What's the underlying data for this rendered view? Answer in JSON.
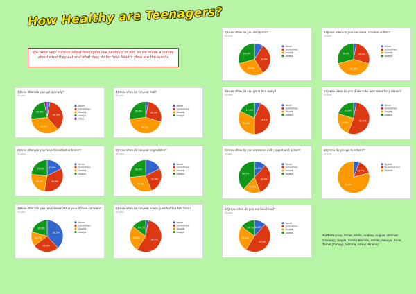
{
  "title": "How Healthy are Teenagers?",
  "intro": "We were very curious about teenagers live healthily or not, so we made a survey about what they eat and what they do for their health. Here are the results",
  "author_label": "Authors:",
  "author_names": "Asa, Oscar, Marie, Andrea, August, Hannah (Norway), Şeyda, Sonen-Blumen, Simon, Akkaya, Sude, Temel (Turkey), Victoria, Alina (Ukraine)",
  "colors": {
    "blue": "#3366cc",
    "red": "#dc3912",
    "orange": "#ff9900",
    "green": "#109618",
    "purple": "#990099"
  },
  "chart_data": [
    {
      "id": "c1",
      "type": "pie",
      "title": "1)How often do you get up early?",
      "subtitle": "34 yanıt",
      "legend": [
        "Never",
        "Sometimes",
        "Usually",
        "Always",
        "Often"
      ],
      "values": [
        2.9,
        35.3,
        35.3,
        23.5,
        2.9
      ],
      "colors": [
        "blue",
        "red",
        "orange",
        "green",
        "purple"
      ],
      "labels": [
        "",
        "35.3%",
        "35.3%",
        "23.5%",
        ""
      ]
    },
    {
      "id": "c2",
      "type": "pie",
      "title": "4)How often do you eat fruit?",
      "subtitle": "34 yanıt",
      "legend": [
        "Never",
        "Sometimes",
        "Usually",
        "Always"
      ],
      "values": [
        2.9,
        26.5,
        44.1,
        26.5
      ],
      "colors": [
        "blue",
        "red",
        "orange",
        "green"
      ],
      "labels": [
        "",
        "26.5%",
        "44.1%",
        "26.5%"
      ]
    },
    {
      "id": "c3",
      "type": "pie",
      "title": "2)How often do you have breakfast at home?",
      "subtitle": "34 yanıt",
      "legend": [
        "Never",
        "Sometimes",
        "Usually",
        "Always"
      ],
      "values": [
        17.6,
        35.3,
        23.5,
        23.5
      ],
      "colors": [
        "blue",
        "red",
        "orange",
        "green"
      ],
      "labels": [
        "17.6%",
        "35.3%",
        "23.5%",
        "23.5%"
      ]
    },
    {
      "id": "c4",
      "type": "pie",
      "title": "5)How often do you eat vegetables?",
      "subtitle": "34 yanıt",
      "legend": [
        "Never",
        "Sometimes",
        "Usually",
        "Always"
      ],
      "values": [
        17.6,
        26.5,
        29.4,
        26.5
      ],
      "colors": [
        "blue",
        "red",
        "orange",
        "green"
      ],
      "labels": [
        "",
        "26.5%",
        "29.4%",
        "26.5%"
      ]
    },
    {
      "id": "c5",
      "type": "pie",
      "title": "3)How often do you have breakfast at your school canteen?",
      "subtitle": "34 yanıt",
      "legend": [
        "Never",
        "Sometimes",
        "Usually",
        "Always"
      ],
      "values": [
        38.2,
        26.5,
        14.7,
        20.6
      ],
      "colors": [
        "blue",
        "red",
        "orange",
        "green"
      ],
      "labels": [
        "38.2%",
        "26.5%",
        "14.7%",
        "20.6%"
      ]
    },
    {
      "id": "c6",
      "type": "pie",
      "title": "6)How often do you eat snack, junk food or fast food?",
      "subtitle": "34 yanıt",
      "legend": [
        "Never",
        "Sometimes",
        "Usually",
        "Always"
      ],
      "values": [
        2.9,
        55.9,
        26.5,
        14.7
      ],
      "colors": [
        "blue",
        "red",
        "orange",
        "green"
      ],
      "labels": [
        "",
        "55.9%",
        "26.5%",
        "14.7%"
      ]
    },
    {
      "id": "c7",
      "type": "pie",
      "title": "7)How often do you do sports?",
      "subtitle": "34 yanıt",
      "legend": [
        "Never",
        "Sometimes",
        "Usually",
        "Always"
      ],
      "values": [
        8.8,
        32.4,
        29.4,
        29.4
      ],
      "colors": [
        "blue",
        "red",
        "orange",
        "green"
      ],
      "labels": [
        "",
        "32.4%",
        "29.4%",
        "29.4%"
      ]
    },
    {
      "id": "c8",
      "type": "pie",
      "title": "11)How often do you eat meat, chicken or fish?",
      "subtitle": "34 yanıt",
      "legend": [
        "Never",
        "Sometimes",
        "Usually",
        "Always"
      ],
      "values": [
        2.9,
        26.5,
        41.2,
        29.4
      ],
      "colors": [
        "blue",
        "red",
        "orange",
        "green"
      ],
      "labels": [
        "",
        "26.5%",
        "41.2%",
        "29.4%"
      ]
    },
    {
      "id": "c9",
      "type": "pie",
      "title": "8)How often do you go to bed early?",
      "subtitle": "34 yanıt",
      "legend": [
        "Never",
        "Sometimes",
        "Usually",
        "Always"
      ],
      "values": [
        5.9,
        44.1,
        32.4,
        17.6
      ],
      "colors": [
        "blue",
        "red",
        "orange",
        "green"
      ],
      "labels": [
        "",
        "44.1%",
        "32.4%",
        "17.6%"
      ]
    },
    {
      "id": "c10",
      "type": "pie",
      "title": "12)How often do you drink coke and other fizzy drinks?",
      "subtitle": "34 yanıt",
      "legend": [
        "Never",
        "Sometimes",
        "Usually",
        "Always"
      ],
      "values": [
        2.9,
        52.9,
        23.5,
        20.6
      ],
      "colors": [
        "blue",
        "red",
        "orange",
        "green"
      ],
      "labels": [
        "",
        "52.9%",
        "23.5%",
        "20.6%"
      ]
    },
    {
      "id": "c11",
      "type": "pie",
      "title": "9)How often do you consume milk, yogurt and ayran?",
      "subtitle": "34 yanıt",
      "legend": [
        "Never",
        "Sometimes",
        "Usually",
        "Always"
      ],
      "values": [
        11.8,
        32.4,
        17.6,
        38.2
      ],
      "colors": [
        "blue",
        "red",
        "orange",
        "green"
      ],
      "labels": [
        "11.8%",
        "32.4%",
        "17.6%",
        "38.2%"
      ]
    },
    {
      "id": "c12",
      "type": "pie",
      "title": "13)How do you go to school?",
      "subtitle": "34 yanıt",
      "legend": [
        "By bike",
        "By school bus",
        "On foot"
      ],
      "values": [
        5.9,
        14.7,
        79.4
      ],
      "colors": [
        "blue",
        "red",
        "orange"
      ],
      "labels": [
        "",
        "14.7%",
        "79.4%"
      ]
    },
    {
      "id": "c13",
      "type": "pie",
      "title": "10)How often do you eat local food?",
      "subtitle": "34 yanıt",
      "legend": [
        "Never",
        "Sometimes",
        "Usually",
        "Always"
      ],
      "values": [
        11.8,
        47.1,
        26.5,
        14.7
      ],
      "colors": [
        "blue",
        "red",
        "orange",
        "green"
      ],
      "labels": [
        "11.8%",
        "47.1%",
        "26.5%",
        "14.7%"
      ]
    }
  ]
}
